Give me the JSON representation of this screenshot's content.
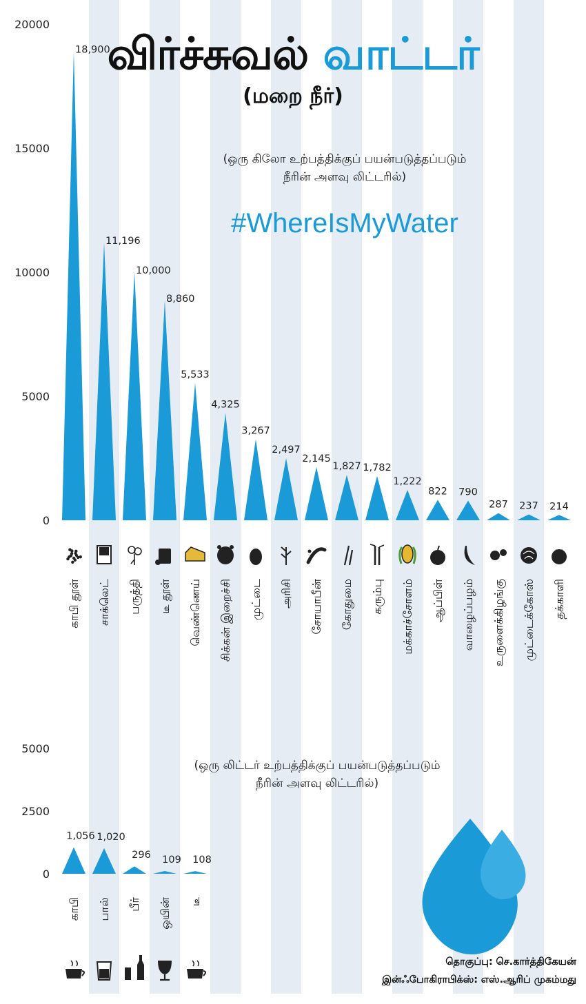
{
  "title": {
    "part1": "விர்ச்சுவல்",
    "part2": "வாட்டர்",
    "subtitle": "(மறை நீர்)"
  },
  "hashtag": "#WhereIsMyWater",
  "notes": {
    "top_line1": "(ஒரு கிலோ உற்பத்திக்குப் பயன்படுத்தப்படும்",
    "top_line2": "நீரின் அளவு லிட்டரில்)",
    "bottom_line1": "(ஒரு லிட்டர் உற்பத்திக்குப் பயன்படுத்தப்படும்",
    "bottom_line2": "நீரின் அளவு லிட்டரில்)"
  },
  "credits": {
    "compiled_label": "தொகுப்பு:",
    "compiled_name": "செ.கார்த்திகேயன்",
    "infographics_label": "இன்ஃபோகிராபிக்ஸ்:",
    "infographics_name": "எஸ்.ஆரிப் முகம்மது"
  },
  "colors": {
    "accent": "#1a9ad6",
    "stripe": "#e6ecf4",
    "text": "#111111",
    "drop_light": "#3aaee2"
  },
  "chart_data": [
    {
      "type": "bar",
      "title": "ஒரு கிலோ உற்பத்திக்குப் பயன்படுத்தப்படும் நீரின் அளவு லிட்டரில்",
      "unit": "litres per kg",
      "ylim": [
        0,
        20000
      ],
      "yticks": [
        "20000",
        "15000",
        "10000",
        "5000",
        "0"
      ],
      "yticks_values": [
        20000,
        15000,
        10000,
        5000,
        0
      ],
      "categories": [
        "காபி தூள்",
        "சாக்லெட்",
        "பருத்தி",
        "டீ தூள்",
        "வெண்ணெய்",
        "சிக்கன் இறைச்சி",
        "முட்டை",
        "அரிசி",
        "சோயாபீன்",
        "கோதுமை",
        "கரும்பு",
        "மக்காச்சோளம்",
        "ஆப்பிள்",
        "வாழைப்பழம்",
        "உருளைக்கிழங்கு",
        "முட்டைக்கோஸ்",
        "தக்காளி"
      ],
      "values": [
        18900,
        11196,
        10000,
        8860,
        5533,
        4325,
        3267,
        2497,
        2145,
        1827,
        1782,
        1222,
        822,
        790,
        287,
        237,
        214
      ],
      "value_labels": [
        "18,900",
        "11,196",
        "10,000",
        "8,860",
        "5,533",
        "4,325",
        "3,267",
        "2,497",
        "2,145",
        "1,827",
        "1,782",
        "1,222",
        "822",
        "790",
        "287",
        "237",
        "214"
      ],
      "icons": [
        "coffee-powder-icon",
        "chocolate-icon",
        "cotton-icon",
        "tea-powder-icon",
        "butter-icon",
        "chicken-icon",
        "egg-icon",
        "rice-icon",
        "soybean-icon",
        "wheat-icon",
        "sugarcane-icon",
        "corn-icon",
        "apple-icon",
        "banana-icon",
        "potato-icon",
        "cabbage-icon",
        "tomato-icon"
      ]
    },
    {
      "type": "bar",
      "title": "ஒரு லிட்டர் உற்பத்திக்குப் பயன்படுத்தப்படும் நீரின் அளவு லிட்டரில்",
      "unit": "litres per litre",
      "ylim": [
        0,
        5000
      ],
      "yticks": [
        "5000",
        "2500",
        "0"
      ],
      "yticks_values": [
        5000,
        2500,
        0
      ],
      "categories": [
        "காபி",
        "பால்",
        "பீர்",
        "ஒயின்",
        "டீ"
      ],
      "values": [
        1056,
        1020,
        296,
        109,
        108
      ],
      "value_labels": [
        "1,056",
        "1,020",
        "296",
        "109",
        "108"
      ],
      "icons": [
        "coffee-cup-icon",
        "milk-glass-icon",
        "beer-bottle-icon",
        "wine-glass-icon",
        "tea-cup-icon"
      ]
    }
  ]
}
